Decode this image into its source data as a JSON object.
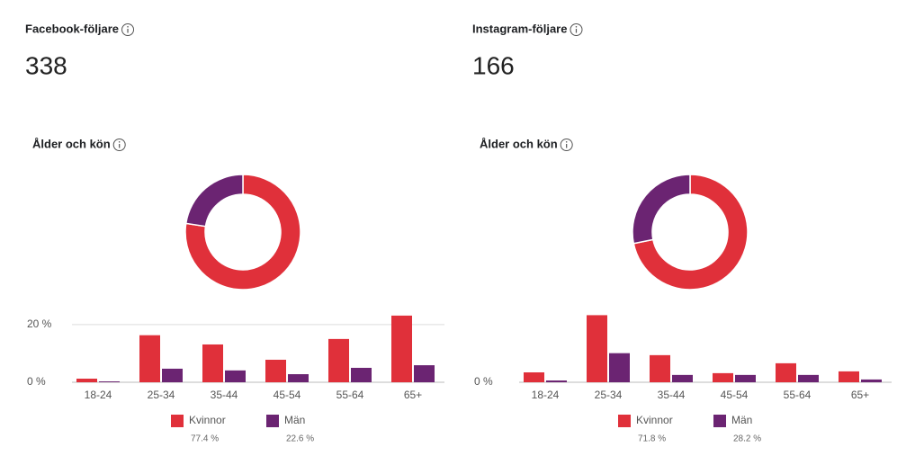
{
  "panels": [
    {
      "title": "Facebook-följare",
      "count": 338,
      "subtitle": "Ålder och kön"
    },
    {
      "title": "Instagram-följare",
      "count": 166,
      "subtitle": "Ålder och kön"
    }
  ],
  "chart_data": [
    {
      "type": "pie",
      "donut": true,
      "categories": [
        "Kvinnor",
        "Män"
      ],
      "values": [
        77.4,
        22.6
      ],
      "value_labels": [
        "77.4 %",
        "22.6 %"
      ],
      "colors": [
        "#e0303a",
        "#6b2472"
      ]
    },
    {
      "type": "bar",
      "categories": [
        "18-24",
        "25-34",
        "35-44",
        "45-54",
        "55-64",
        "65+"
      ],
      "series": [
        {
          "color": "#e0303a",
          "values": [
            1.25,
            16.3,
            13.1,
            7.8,
            15,
            23.1
          ]
        },
        {
          "color": "#6b2472",
          "values": [
            0.3,
            4.7,
            4.1,
            2.8,
            5,
            5.9
          ]
        }
      ],
      "ylim": [
        0,
        24
      ],
      "yticks": [
        {
          "value": 0,
          "label": "0 %"
        },
        {
          "value": 20,
          "label": "20 %"
        }
      ],
      "grid": true
    },
    {
      "type": "pie",
      "donut": true,
      "categories": [
        "Kvinnor",
        "Män"
      ],
      "values": [
        71.8,
        28.2
      ],
      "value_labels": [
        "71.8 %",
        "28.2 %"
      ],
      "colors": [
        "#e0303a",
        "#6b2472"
      ]
    },
    {
      "type": "bar",
      "categories": [
        "18-24",
        "25-34",
        "35-44",
        "45-54",
        "55-64",
        "65+"
      ],
      "series": [
        {
          "color": "#e0303a",
          "values": [
            5.0,
            33.9,
            13.7,
            4.6,
            9.6,
            5.5
          ]
        },
        {
          "color": "#6b2472",
          "values": [
            0.9,
            14.7,
            3.7,
            3.7,
            3.7,
            1.4
          ]
        }
      ],
      "ylim": [
        0,
        35
      ],
      "yticks": [
        {
          "value": 0,
          "label": "0 %"
        }
      ],
      "grid": true
    }
  ]
}
